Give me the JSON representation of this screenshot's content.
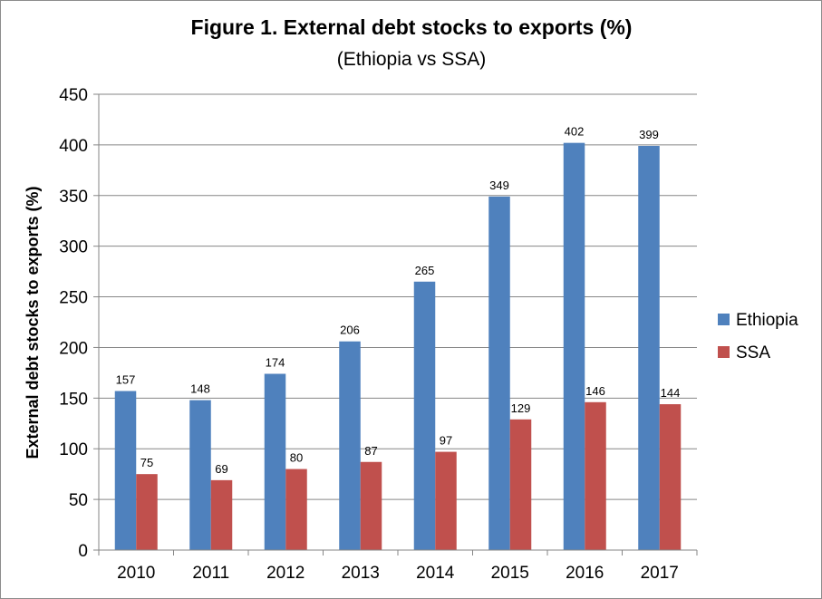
{
  "chart_data": {
    "type": "bar",
    "title": "Figure 1. External debt stocks to exports (%)",
    "subtitle": "(Ethiopia vs SSA)",
    "xlabel": "",
    "ylabel": "External debt stocks to exports (%)",
    "categories": [
      "2010",
      "2011",
      "2012",
      "2013",
      "2014",
      "2015",
      "2016",
      "2017"
    ],
    "series": [
      {
        "name": "Ethiopia",
        "color": "#4f81bd",
        "values": [
          157,
          148,
          174,
          206,
          265,
          349,
          402,
          399
        ]
      },
      {
        "name": "SSA",
        "color": "#c0504d",
        "values": [
          75,
          69,
          80,
          87,
          97,
          129,
          146,
          144
        ]
      }
    ],
    "ylim": [
      0,
      450
    ],
    "yticks": [
      "0",
      "50",
      "100",
      "150",
      "200",
      "250",
      "300",
      "350",
      "400",
      "450"
    ],
    "grid": true,
    "legend_position": "right",
    "data_labels": true
  }
}
